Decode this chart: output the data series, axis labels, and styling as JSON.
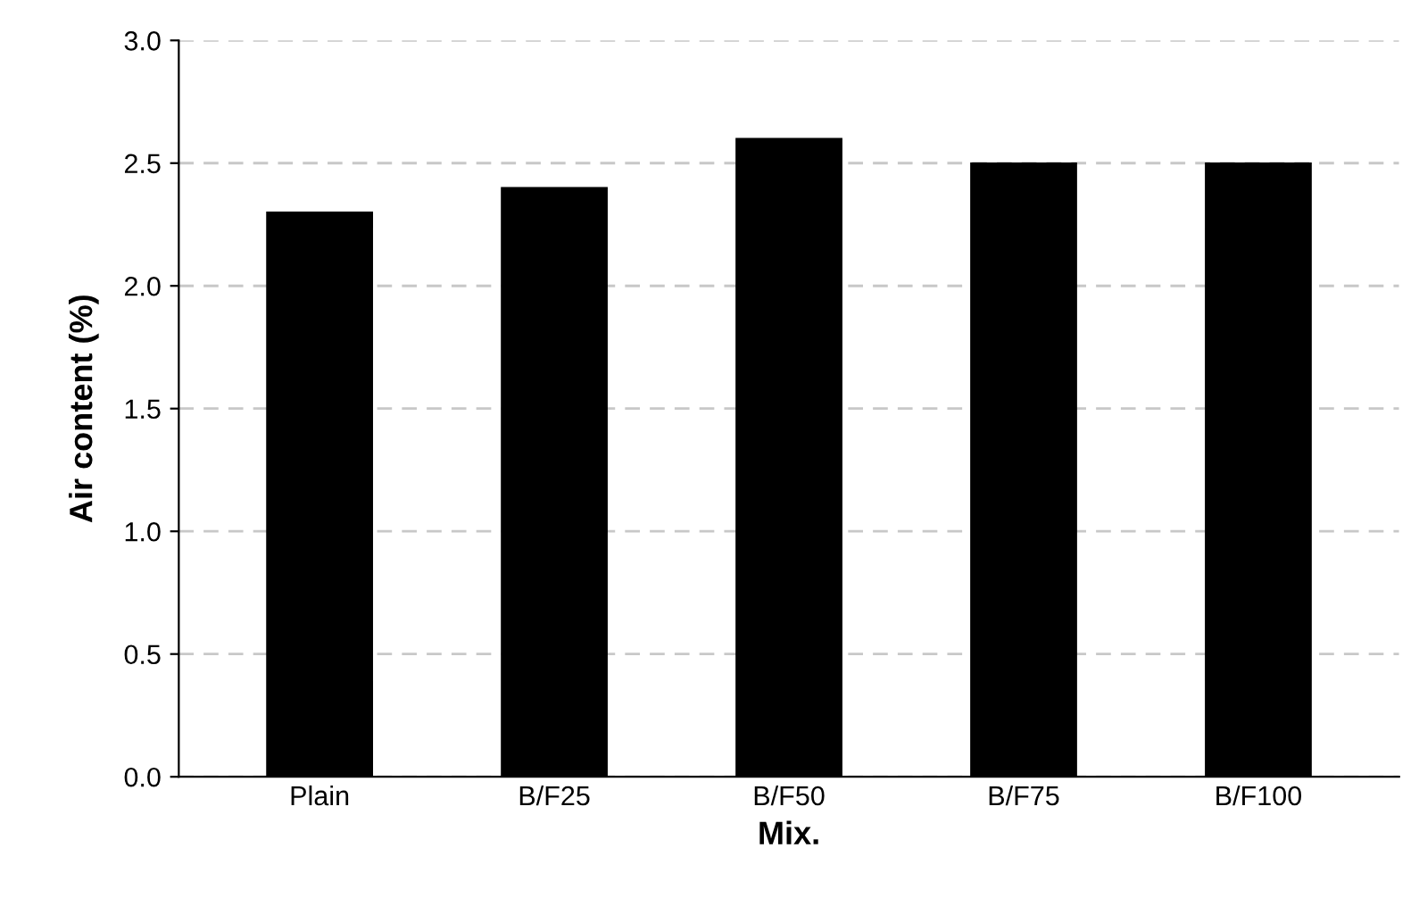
{
  "chart_data": {
    "type": "bar",
    "xlabel": "Mix.",
    "ylabel": "Air content (%)",
    "categories": [
      "Plain",
      "B/F25",
      "B/F50",
      "B/F75",
      "B/F100"
    ],
    "values": [
      2.3,
      2.4,
      2.6,
      2.5,
      2.5
    ],
    "color": "#000000",
    "ylim": [
      0,
      3
    ],
    "yticks": [
      {
        "value": 0,
        "label": "0.0"
      },
      {
        "value": 0.5,
        "label": "0.5"
      },
      {
        "value": 1,
        "label": "1.0"
      },
      {
        "value": 1.5,
        "label": "1.5"
      },
      {
        "value": 2,
        "label": "2.0"
      },
      {
        "value": 2.5,
        "label": "2.5"
      },
      {
        "value": 3,
        "label": "3.0"
      }
    ],
    "grid": "y"
  }
}
